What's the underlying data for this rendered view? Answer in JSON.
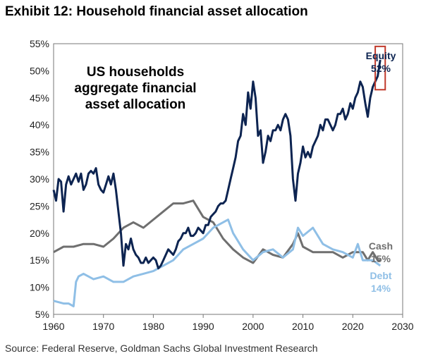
{
  "title": "Exhibit 12: Household financial asset allocation",
  "source": "Source: Federal Reserve, Goldman Sachs Global Investment Research",
  "chart_data": {
    "type": "line",
    "annotation_lines": [
      "US households",
      "aggregate financial",
      "asset allocation"
    ],
    "xlim": [
      1960,
      2030
    ],
    "ylim": [
      5,
      55
    ],
    "x_ticks": [
      "1960",
      "1970",
      "1980",
      "1990",
      "2000",
      "2010",
      "2020",
      "2030"
    ],
    "y_ticks": [
      "5%",
      "10%",
      "15%",
      "20%",
      "25%",
      "30%",
      "35%",
      "40%",
      "45%",
      "50%",
      "55%"
    ],
    "grid": false,
    "highlight_box": {
      "x": [
        2024.5,
        2026.5
      ],
      "y": [
        46.5,
        54.5
      ],
      "color": "#c0392b"
    },
    "series": [
      {
        "name": "Equity",
        "end_label": "52%",
        "color": "#0d2451",
        "x": [
          1960,
          1960.5,
          1961,
          1961.5,
          1962,
          1962.5,
          1963,
          1963.5,
          1964,
          1964.5,
          1965,
          1965.5,
          1966,
          1966.5,
          1967,
          1967.5,
          1968,
          1968.5,
          1969,
          1969.5,
          1970,
          1970.5,
          1971,
          1971.5,
          1972,
          1972.5,
          1973,
          1973.5,
          1974,
          1974.5,
          1975,
          1975.5,
          1976,
          1976.5,
          1977,
          1977.5,
          1978,
          1978.5,
          1979,
          1979.5,
          1980,
          1980.5,
          1981,
          1981.5,
          1982,
          1982.5,
          1983,
          1983.5,
          1984,
          1984.5,
          1985,
          1985.5,
          1986,
          1986.5,
          1987,
          1987.5,
          1988,
          1988.5,
          1989,
          1989.5,
          1990,
          1990.5,
          1991,
          1991.5,
          1992,
          1992.5,
          1993,
          1993.5,
          1994,
          1994.5,
          1995,
          1995.5,
          1996,
          1996.5,
          1997,
          1997.5,
          1998,
          1998.5,
          1999,
          1999.5,
          2000,
          2000.5,
          2001,
          2001.5,
          2002,
          2002.5,
          2003,
          2003.5,
          2004,
          2004.5,
          2005,
          2005.5,
          2006,
          2006.5,
          2007,
          2007.5,
          2008,
          2008.5,
          2009,
          2009.5,
          2010,
          2010.5,
          2011,
          2011.5,
          2012,
          2012.5,
          2013,
          2013.5,
          2014,
          2014.5,
          2015,
          2015.5,
          2016,
          2016.5,
          2017,
          2017.5,
          2018,
          2018.5,
          2019,
          2019.5,
          2020,
          2020.5,
          2021,
          2021.5,
          2022,
          2022.5,
          2023,
          2023.5,
          2024,
          2024.5,
          2025,
          2025.5
        ],
        "values": [
          28,
          26,
          30,
          29.5,
          24,
          29,
          30.5,
          29,
          30,
          31,
          29.5,
          31,
          28,
          29,
          31,
          31.5,
          31,
          32,
          29,
          28,
          27.5,
          29,
          30.5,
          29,
          31,
          28,
          24,
          20,
          14,
          18,
          17,
          19,
          17,
          16,
          15.5,
          14.5,
          14.5,
          15.5,
          14.5,
          15,
          15.5,
          15,
          13.5,
          14,
          15,
          16,
          17,
          16.5,
          16,
          17,
          18.5,
          19,
          20,
          20,
          21,
          19.5,
          19.5,
          20,
          21,
          20.5,
          20,
          21.5,
          21.5,
          23,
          23.5,
          24,
          25,
          25.5,
          25.5,
          26,
          28,
          30,
          32,
          34,
          37,
          38,
          42,
          40,
          46,
          43,
          48,
          45,
          38,
          39,
          33,
          35,
          38,
          37,
          39,
          39,
          40,
          39,
          41,
          42,
          41,
          38,
          30,
          26,
          31,
          33,
          36,
          34,
          35,
          34,
          36,
          37,
          38,
          40,
          39,
          41,
          41,
          40,
          39,
          40,
          42,
          42,
          43,
          41,
          42,
          44,
          43,
          45,
          46,
          48,
          47,
          44,
          41.5,
          45,
          47,
          48,
          49,
          52
        ]
      },
      {
        "name": "Cash",
        "end_label": "15%",
        "color": "#6f6f6f",
        "x": [
          1960,
          1962,
          1964,
          1966,
          1968,
          1970,
          1972,
          1974,
          1976,
          1978,
          1980,
          1982,
          1984,
          1986,
          1988,
          1990,
          1992,
          1994,
          1996,
          1998,
          2000,
          2002,
          2004,
          2006,
          2008,
          2009,
          2010,
          2012,
          2014,
          2016,
          2018,
          2020,
          2022,
          2023,
          2024,
          2025,
          2025.5
        ],
        "values": [
          16.5,
          17.5,
          17.5,
          18,
          18,
          17.5,
          19,
          21,
          22,
          21,
          22.5,
          24,
          25.5,
          25.5,
          26,
          23,
          22,
          19,
          17,
          15.5,
          14.5,
          17,
          16,
          15.5,
          18,
          20,
          17.5,
          16.5,
          16.5,
          16.5,
          15.5,
          16.5,
          16.5,
          15,
          16.5,
          15,
          15
        ]
      },
      {
        "name": "Debt",
        "end_label": "14%",
        "color": "#8fbfe6",
        "x": [
          1960,
          1962,
          1963,
          1964,
          1964.5,
          1965,
          1966,
          1968,
          1970,
          1972,
          1974,
          1976,
          1978,
          1980,
          1982,
          1984,
          1986,
          1988,
          1990,
          1992,
          1994,
          1995,
          1996,
          1998,
          2000,
          2002,
          2004,
          2006,
          2008,
          2009,
          2010,
          2012,
          2014,
          2016,
          2018,
          2020,
          2021,
          2022,
          2024,
          2025.5
        ],
        "values": [
          7.5,
          7,
          7,
          6.5,
          11,
          12,
          12.5,
          11.5,
          12,
          11,
          11,
          12,
          12.5,
          13,
          14,
          15,
          17,
          18,
          19,
          21,
          22,
          22.5,
          20,
          17,
          15,
          16.5,
          17,
          15.5,
          17,
          21,
          19.5,
          21,
          18,
          17,
          16.5,
          15.5,
          18,
          15,
          15,
          14
        ]
      }
    ]
  }
}
